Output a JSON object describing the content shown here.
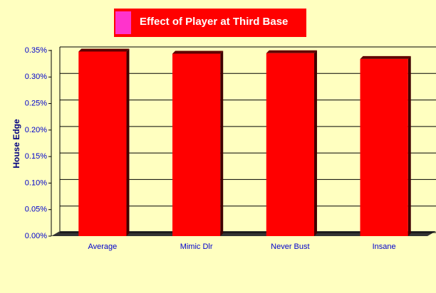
{
  "chart_data": {
    "type": "bar",
    "title": "Effect of Player at Third Base",
    "y_label": "House Edge",
    "categories": [
      "Average",
      "Mimic Dlr",
      "Never Bust",
      "Insane"
    ],
    "values": [
      0.348,
      0.344,
      0.345,
      0.334
    ],
    "color": "#ff0000",
    "ylim": [
      0,
      0.35
    ],
    "yticks": [
      {
        "value": 0,
        "label": "0.00%"
      },
      {
        "value": 0.05,
        "label": "0.05%"
      },
      {
        "value": 0.1,
        "label": "0.10%"
      },
      {
        "value": 0.15,
        "label": "0.15%"
      },
      {
        "value": 0.2,
        "label": "0.20%"
      },
      {
        "value": 0.25,
        "label": "0.25%"
      },
      {
        "value": 0.3,
        "label": "0.30%"
      },
      {
        "value": 0.35,
        "label": "0.35%"
      }
    ],
    "grid": true
  }
}
